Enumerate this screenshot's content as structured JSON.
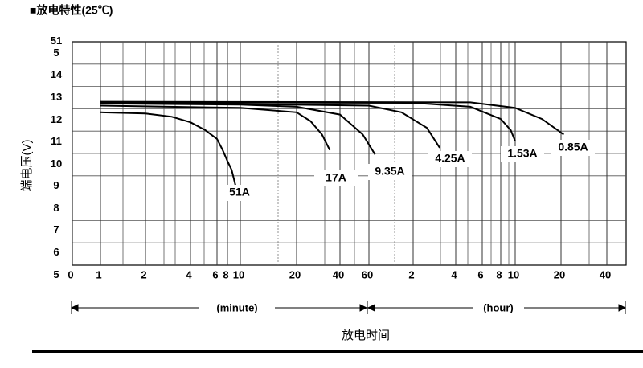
{
  "chart_data": {
    "type": "line",
    "title": "■放电特性(25℃)",
    "y_label": "端电压(V)",
    "x_label": "放电时间",
    "x_segments": [
      "(minute)",
      "(hour)"
    ],
    "xlim": [
      0,
      3200
    ],
    "ylim": [
      5.4,
      15.5
    ],
    "xticks": [
      0,
      1,
      2,
      4,
      6,
      8,
      10,
      20,
      40,
      60,
      {
        "value": 120,
        "label": "2"
      },
      {
        "value": 240,
        "label": "4"
      },
      {
        "value": 360,
        "label": "6"
      },
      {
        "value": 480,
        "label": "8"
      },
      {
        "value": 600,
        "label": "10"
      },
      {
        "value": 1200,
        "label": "20"
      },
      {
        "value": 2400,
        "label": "40"
      }
    ],
    "yticks": [
      5,
      6,
      7,
      8,
      9,
      10,
      11,
      12,
      13,
      14,
      {
        "value": 15,
        "label": "51\n5"
      }
    ],
    "series": [
      {
        "name": "51A",
        "color": "#000000",
        "x": [
          1,
          2,
          3,
          4,
          5,
          6,
          7,
          8,
          8.6,
          9.2
        ],
        "values": [
          12.3,
          12.25,
          12.1,
          11.85,
          11.5,
          11.1,
          10.6,
          10.1,
          9.7,
          9.0
        ]
      },
      {
        "name": "17A",
        "color": "#000000",
        "x": [
          1,
          10,
          20,
          25,
          30,
          34
        ],
        "values": [
          12.6,
          12.5,
          12.3,
          11.9,
          11.3,
          10.6
        ]
      },
      {
        "name": "9.35A",
        "color": "#000000",
        "x": [
          1,
          10,
          20,
          40,
          55,
          66
        ],
        "values": [
          12.7,
          12.65,
          12.55,
          12.2,
          11.3,
          10.4
        ]
      },
      {
        "name": "4.25A",
        "color": "#000000",
        "x": [
          1,
          60,
          100,
          150,
          185
        ],
        "values": [
          12.75,
          12.6,
          12.3,
          11.6,
          10.7
        ]
      },
      {
        "name": "1.53A",
        "color": "#000000",
        "x": [
          1,
          120,
          300,
          480,
          560,
          600
        ],
        "values": [
          12.75,
          12.73,
          12.55,
          12.0,
          11.5,
          11.0
        ]
      },
      {
        "name": "0.85A",
        "color": "#000000",
        "x": [
          1,
          300,
          600,
          900,
          1250
        ],
        "values": [
          12.78,
          12.75,
          12.5,
          12.0,
          11.3
        ]
      }
    ]
  }
}
